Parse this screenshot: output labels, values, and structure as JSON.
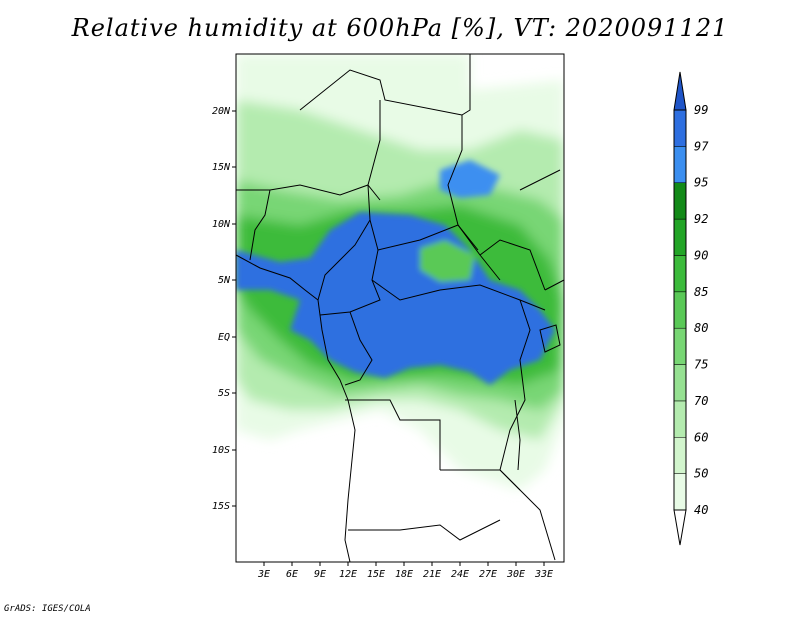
{
  "title": "Relative humidity at 600hPa [%], VT: 2020091121",
  "credit": "GrADS: IGES/COLA",
  "axes": {
    "y_ticks": [
      "20N",
      "15N",
      "10N",
      "5N",
      "EQ",
      "5S",
      "10S",
      "15S"
    ],
    "x_ticks": [
      "3E",
      "6E",
      "9E",
      "12E",
      "15E",
      "18E",
      "21E",
      "24E",
      "27E",
      "30E",
      "33E"
    ],
    "lon_range": [
      0,
      35
    ],
    "lat_range": [
      -20,
      25
    ]
  },
  "colorbar": {
    "levels": [
      "40",
      "50",
      "60",
      "70",
      "75",
      "80",
      "85",
      "90",
      "92",
      "95",
      "97",
      "99"
    ],
    "colors": [
      "#ffffff",
      "#e8fbe6",
      "#d2f5cd",
      "#b4ebaf",
      "#96e192",
      "#78d674",
      "#5ac957",
      "#3cbb3b",
      "#22a527",
      "#138a18",
      "#3c8ff0",
      "#2e6fe0",
      "#1f55c8"
    ]
  },
  "chart_data": {
    "type": "heatmap",
    "variable": "Relative humidity",
    "units": "%",
    "pressure_level": "600hPa",
    "valid_time": "2020091121"
  }
}
